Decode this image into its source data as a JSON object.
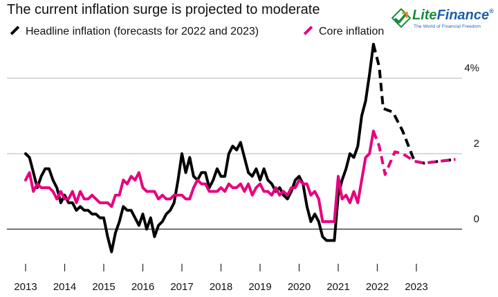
{
  "chart_data": {
    "type": "line",
    "title": "The current inflation surge is projected to moderate",
    "xlabel": "",
    "ylabel": "",
    "xlim": [
      2013,
      2024.2
    ],
    "ylim": [
      -0.8,
      5
    ],
    "yticks": [
      {
        "value": 0,
        "label": "0"
      },
      {
        "value": 2,
        "label": "2"
      },
      {
        "value": 4,
        "label": "4%"
      }
    ],
    "xticks": [
      {
        "value": 2013,
        "label": "2013"
      },
      {
        "value": 2014,
        "label": "2014"
      },
      {
        "value": 2015,
        "label": "2015"
      },
      {
        "value": 2016,
        "label": "2016"
      },
      {
        "value": 2017,
        "label": "2017"
      },
      {
        "value": 2018,
        "label": "2018"
      },
      {
        "value": 2019,
        "label": "2019"
      },
      {
        "value": 2020,
        "label": "2020"
      },
      {
        "value": 2021,
        "label": "2021"
      },
      {
        "value": 2022,
        "label": "2022"
      },
      {
        "value": 2023,
        "label": "2023"
      }
    ],
    "grid": "horizontal",
    "legend": "top-left",
    "series": [
      {
        "name": "Headline inflation (forecasts for 2022 and 2023)",
        "color": "#000000",
        "actual": [
          [
            2013.0,
            2.0
          ],
          [
            2013.1,
            1.9
          ],
          [
            2013.2,
            1.5
          ],
          [
            2013.3,
            1.1
          ],
          [
            2013.4,
            1.4
          ],
          [
            2013.5,
            1.6
          ],
          [
            2013.6,
            1.6
          ],
          [
            2013.7,
            1.3
          ],
          [
            2013.8,
            1.1
          ],
          [
            2013.9,
            0.7
          ],
          [
            2014.0,
            0.9
          ],
          [
            2014.1,
            0.7
          ],
          [
            2014.2,
            0.7
          ],
          [
            2014.3,
            0.5
          ],
          [
            2014.4,
            0.6
          ],
          [
            2014.5,
            0.5
          ],
          [
            2014.6,
            0.5
          ],
          [
            2014.7,
            0.4
          ],
          [
            2014.8,
            0.4
          ],
          [
            2014.9,
            0.3
          ],
          [
            2015.0,
            0.3
          ],
          [
            2015.1,
            -0.2
          ],
          [
            2015.2,
            -0.6
          ],
          [
            2015.3,
            -0.1
          ],
          [
            2015.4,
            0.2
          ],
          [
            2015.5,
            0.6
          ],
          [
            2015.6,
            0.5
          ],
          [
            2015.7,
            0.5
          ],
          [
            2015.8,
            0.3
          ],
          [
            2015.9,
            0.1
          ],
          [
            2016.0,
            0.4
          ],
          [
            2016.1,
            0.0
          ],
          [
            2016.2,
            0.3
          ],
          [
            2016.3,
            -0.2
          ],
          [
            2016.4,
            0.1
          ],
          [
            2016.5,
            0.2
          ],
          [
            2016.6,
            0.4
          ],
          [
            2016.7,
            0.5
          ],
          [
            2016.8,
            0.7
          ],
          [
            2016.9,
            1.3
          ],
          [
            2017.0,
            2.0
          ],
          [
            2017.1,
            1.5
          ],
          [
            2017.2,
            1.9
          ],
          [
            2017.3,
            1.4
          ],
          [
            2017.4,
            1.3
          ],
          [
            2017.5,
            1.5
          ],
          [
            2017.6,
            1.5
          ],
          [
            2017.7,
            1.1
          ],
          [
            2017.8,
            1.3
          ],
          [
            2017.9,
            1.6
          ],
          [
            2018.0,
            1.4
          ],
          [
            2018.1,
            1.4
          ],
          [
            2018.2,
            2.0
          ],
          [
            2018.3,
            2.2
          ],
          [
            2018.4,
            2.1
          ],
          [
            2018.5,
            2.3
          ],
          [
            2018.6,
            1.9
          ],
          [
            2018.7,
            1.5
          ],
          [
            2018.8,
            1.4
          ],
          [
            2018.9,
            1.6
          ],
          [
            2019.0,
            1.3
          ],
          [
            2019.1,
            1.6
          ],
          [
            2019.2,
            1.3
          ],
          [
            2019.3,
            1.2
          ],
          [
            2019.4,
            1.0
          ],
          [
            2019.5,
            1.1
          ],
          [
            2019.6,
            0.9
          ],
          [
            2019.7,
            0.8
          ],
          [
            2019.8,
            1.0
          ],
          [
            2019.9,
            1.3
          ],
          [
            2020.0,
            1.4
          ],
          [
            2020.1,
            1.2
          ],
          [
            2020.2,
            0.6
          ],
          [
            2020.3,
            0.2
          ],
          [
            2020.4,
            0.4
          ],
          [
            2020.5,
            0.2
          ],
          [
            2020.6,
            -0.2
          ],
          [
            2020.7,
            -0.3
          ],
          [
            2020.8,
            -0.3
          ],
          [
            2020.9,
            -0.3
          ],
          [
            2021.0,
            0.9
          ],
          [
            2021.1,
            1.3
          ],
          [
            2021.2,
            1.6
          ],
          [
            2021.3,
            2.0
          ],
          [
            2021.4,
            1.9
          ],
          [
            2021.5,
            2.2
          ],
          [
            2021.6,
            3.0
          ],
          [
            2021.7,
            3.4
          ],
          [
            2021.8,
            4.1
          ],
          [
            2021.9,
            4.9
          ]
        ],
        "forecast": [
          [
            2021.9,
            4.9
          ],
          [
            2022.05,
            4.3
          ],
          [
            2022.15,
            3.2
          ],
          [
            2022.4,
            3.1
          ],
          [
            2022.65,
            2.6
          ],
          [
            2022.95,
            1.8
          ],
          [
            2023.2,
            1.75
          ],
          [
            2023.6,
            1.8
          ],
          [
            2024.0,
            1.85
          ]
        ]
      },
      {
        "name": "Core inflation",
        "color": "#e6007e",
        "actual": [
          [
            2013.0,
            1.3
          ],
          [
            2013.1,
            1.5
          ],
          [
            2013.2,
            1.0
          ],
          [
            2013.3,
            1.2
          ],
          [
            2013.4,
            1.1
          ],
          [
            2013.5,
            1.1
          ],
          [
            2013.6,
            1.1
          ],
          [
            2013.7,
            1.0
          ],
          [
            2013.8,
            0.8
          ],
          [
            2013.9,
            1.0
          ],
          [
            2014.0,
            0.8
          ],
          [
            2014.1,
            0.8
          ],
          [
            2014.2,
            1.0
          ],
          [
            2014.3,
            0.7
          ],
          [
            2014.4,
            1.0
          ],
          [
            2014.5,
            0.8
          ],
          [
            2014.6,
            0.8
          ],
          [
            2014.7,
            0.9
          ],
          [
            2014.8,
            0.8
          ],
          [
            2014.9,
            0.7
          ],
          [
            2015.0,
            0.7
          ],
          [
            2015.1,
            0.7
          ],
          [
            2015.2,
            0.6
          ],
          [
            2015.3,
            0.9
          ],
          [
            2015.4,
            0.9
          ],
          [
            2015.5,
            1.3
          ],
          [
            2015.6,
            1.2
          ],
          [
            2015.7,
            1.4
          ],
          [
            2015.8,
            1.3
          ],
          [
            2015.9,
            1.5
          ],
          [
            2016.0,
            1.1
          ],
          [
            2016.1,
            1.0
          ],
          [
            2016.2,
            1.0
          ],
          [
            2016.3,
            1.0
          ],
          [
            2016.4,
            0.8
          ],
          [
            2016.5,
            0.9
          ],
          [
            2016.6,
            0.8
          ],
          [
            2016.7,
            0.8
          ],
          [
            2016.8,
            0.9
          ],
          [
            2016.9,
            0.9
          ],
          [
            2017.0,
            0.9
          ],
          [
            2017.1,
            0.8
          ],
          [
            2017.2,
            0.8
          ],
          [
            2017.3,
            1.1
          ],
          [
            2017.4,
            1.3
          ],
          [
            2017.5,
            1.2
          ],
          [
            2017.6,
            1.2
          ],
          [
            2017.7,
            1.0
          ],
          [
            2017.8,
            1.0
          ],
          [
            2017.9,
            1.0
          ],
          [
            2018.0,
            1.1
          ],
          [
            2018.1,
            1.0
          ],
          [
            2018.2,
            1.2
          ],
          [
            2018.3,
            1.1
          ],
          [
            2018.4,
            1.1
          ],
          [
            2018.5,
            1.2
          ],
          [
            2018.6,
            1.0
          ],
          [
            2018.7,
            1.2
          ],
          [
            2018.8,
            0.9
          ],
          [
            2018.9,
            1.1
          ],
          [
            2019.0,
            1.2
          ],
          [
            2019.1,
            1.0
          ],
          [
            2019.2,
            1.0
          ],
          [
            2019.3,
            0.9
          ],
          [
            2019.4,
            1.1
          ],
          [
            2019.5,
            0.9
          ],
          [
            2019.6,
            1.0
          ],
          [
            2019.7,
            0.9
          ],
          [
            2019.8,
            1.1
          ],
          [
            2019.9,
            1.1
          ],
          [
            2020.0,
            1.3
          ],
          [
            2020.1,
            1.2
          ],
          [
            2020.2,
            1.2
          ],
          [
            2020.3,
            0.9
          ],
          [
            2020.4,
            1.0
          ],
          [
            2020.5,
            0.8
          ],
          [
            2020.6,
            0.2
          ],
          [
            2020.7,
            0.2
          ],
          [
            2020.8,
            0.2
          ],
          [
            2020.9,
            0.2
          ],
          [
            2021.0,
            1.4
          ],
          [
            2021.1,
            0.8
          ],
          [
            2021.2,
            0.9
          ],
          [
            2021.3,
            0.7
          ],
          [
            2021.4,
            1.0
          ],
          [
            2021.5,
            0.7
          ],
          [
            2021.6,
            1.3
          ],
          [
            2021.7,
            1.9
          ],
          [
            2021.8,
            2.0
          ],
          [
            2021.9,
            2.6
          ]
        ],
        "forecast": [
          [
            2021.9,
            2.6
          ],
          [
            2022.05,
            2.2
          ],
          [
            2022.2,
            1.45
          ],
          [
            2022.45,
            2.05
          ],
          [
            2022.65,
            2.0
          ],
          [
            2022.95,
            1.8
          ],
          [
            2023.2,
            1.75
          ],
          [
            2023.6,
            1.8
          ],
          [
            2024.0,
            1.85
          ]
        ]
      }
    ]
  },
  "legend": {
    "headline": "Headline inflation (forecasts for 2022 and 2023)",
    "core": "Core inflation"
  },
  "logo": {
    "word_lite": "Lite",
    "word_finance": "Finance",
    "registered": "®",
    "tagline": "The World of Financial Freedom"
  }
}
